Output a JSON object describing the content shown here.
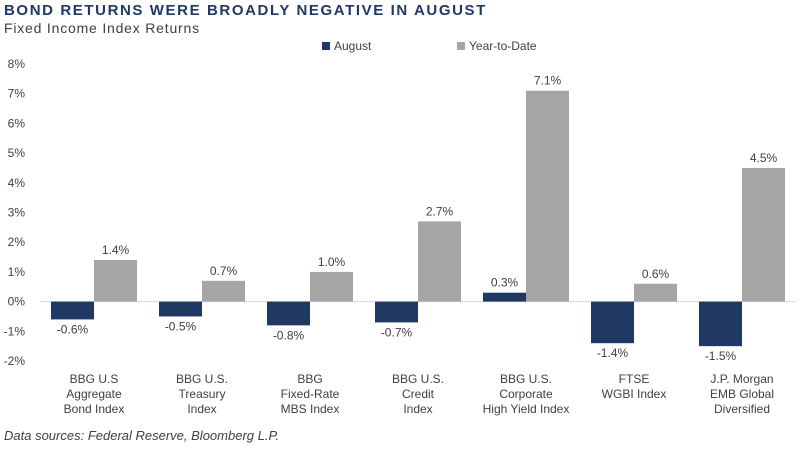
{
  "title": "BOND RETURNS WERE BROADLY NEGATIVE IN AUGUST",
  "subtitle": "Fixed Income Index Returns",
  "source": "Data sources: Federal Reserve, Bloomberg L.P.",
  "colors": {
    "august": "#1f3864",
    "ytd": "#a5a5a6",
    "axis": "#d9d9d9"
  },
  "chart_data": {
    "type": "bar",
    "title": "Fixed Income Index Returns",
    "xlabel": "",
    "ylabel": "",
    "ylim": [
      -2,
      8
    ],
    "ytick_step": 1,
    "ytick_suffix": "%",
    "grid": false,
    "legend_position": "top",
    "categories": [
      [
        "BBG U.S",
        "Aggregate",
        "Bond Index"
      ],
      [
        "BBG U.S.",
        "Treasury",
        "Index"
      ],
      [
        "BBG",
        "Fixed-Rate",
        "MBS Index"
      ],
      [
        "BBG U.S.",
        "Credit",
        "Index"
      ],
      [
        "BBG U.S.",
        "Corporate",
        "High Yield Index"
      ],
      [
        "FTSE",
        "WGBI Index"
      ],
      [
        "J.P. Morgan",
        "EMB Global",
        "Diversified"
      ]
    ],
    "series": [
      {
        "name": "August",
        "values": [
          -0.6,
          -0.5,
          -0.8,
          -0.7,
          0.3,
          -1.4,
          -1.5
        ],
        "labels": [
          "-0.6%",
          "-0.5%",
          "-0.8%",
          "-0.7%",
          "0.3%",
          "-1.4%",
          "-1.5%"
        ]
      },
      {
        "name": "Year-to-Date",
        "values": [
          1.4,
          0.7,
          1.0,
          2.7,
          7.1,
          0.6,
          4.5
        ],
        "labels": [
          "1.4%",
          "0.7%",
          "1.0%",
          "2.7%",
          "7.1%",
          "0.6%",
          "4.5%"
        ]
      }
    ]
  }
}
